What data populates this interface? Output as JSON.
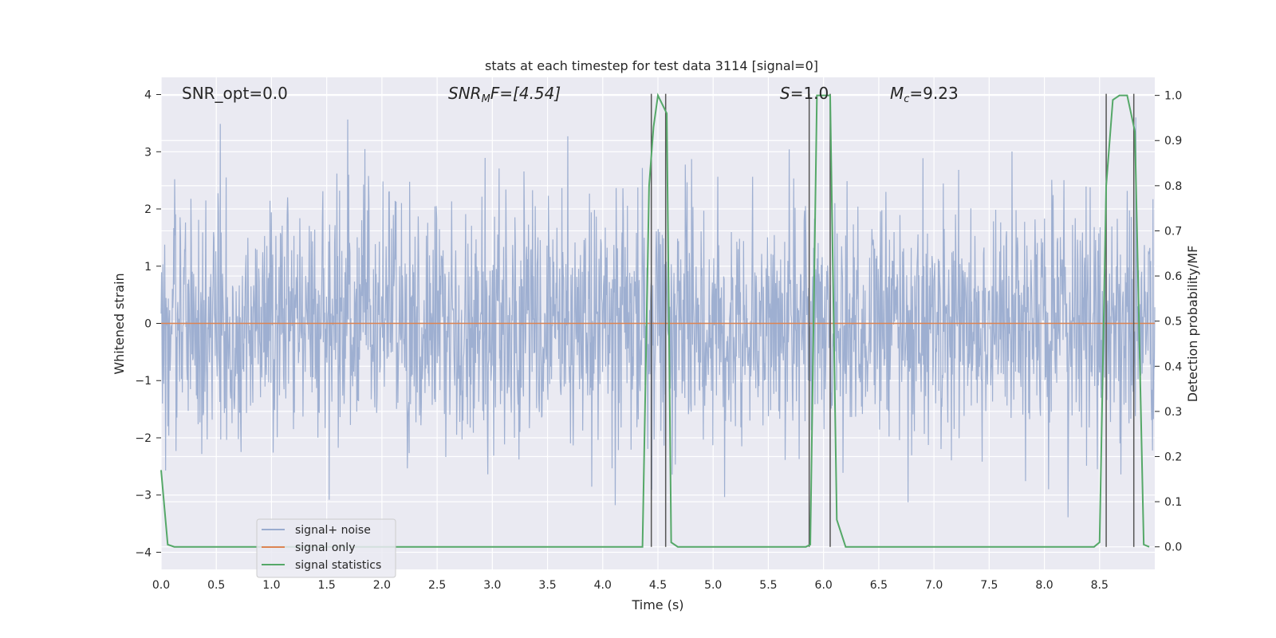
{
  "chart_data": {
    "type": "line",
    "title": "stats at each timestep for test data 3114 [signal=0]",
    "xlabel": "Time (s)",
    "ylabel": "Whitened strain",
    "ylabel_right": "Detection probability/MF",
    "xlim": [
      0,
      9.0
    ],
    "ylim": [
      -4.3,
      4.3
    ],
    "ylim_right": [
      -0.05,
      1.04
    ],
    "x_ticks": [
      "0.0",
      "0.5",
      "1.0",
      "1.5",
      "2.0",
      "2.5",
      "3.0",
      "3.5",
      "4.0",
      "4.5",
      "5.0",
      "5.5",
      "6.0",
      "6.5",
      "7.0",
      "7.5",
      "8.0",
      "8.5"
    ],
    "y_ticks": [
      "4",
      "3",
      "2",
      "1",
      "0",
      "−1",
      "−2",
      "−3",
      "−4"
    ],
    "y_right_ticks": [
      "1.0",
      "0.9",
      "0.8",
      "0.7",
      "0.6",
      "0.5",
      "0.4",
      "0.3",
      "0.2",
      "0.1",
      "0.0"
    ],
    "grid": true,
    "legend_placement": "lower-left",
    "annotations": {
      "snr_opt": "SNR_opt=0.0",
      "snr_mf_label": "SNR",
      "snr_mf_sub": "M",
      "snr_mf_rest": "F=[4.54]",
      "s_label": "S",
      "s_rest": "=1.0",
      "mc_label": "M",
      "mc_sub": "c",
      "mc_rest": "=9.23"
    },
    "series": [
      {
        "name": "signal+ noise",
        "color": "#9aaccf",
        "description_values": "whitened strain noise, approx range -3.7 to 3.6"
      },
      {
        "name": "signal only",
        "color": "#dd8452",
        "y_constant": 0
      },
      {
        "name": "signal statistics",
        "color": "#55a868",
        "x": [
          0.0,
          0.06,
          0.12,
          0.5,
          1.0,
          1.5,
          2.0,
          2.5,
          3.0,
          3.5,
          4.0,
          4.36,
          4.42,
          4.46,
          4.5,
          4.58,
          4.62,
          4.68,
          5.0,
          5.5,
          5.84,
          5.88,
          5.94,
          6.06,
          6.12,
          6.2,
          6.5,
          7.0,
          7.5,
          8.0,
          8.45,
          8.5,
          8.56,
          8.62,
          8.68,
          8.75,
          8.82,
          8.9,
          8.95
        ],
        "values": [
          0.17,
          0.005,
          0.0,
          0.0,
          0.0,
          0.0,
          0.0,
          0.0,
          0.0,
          0.0,
          0.0,
          0.0,
          0.8,
          0.93,
          1.0,
          0.96,
          0.01,
          0.0,
          0.0,
          0.0,
          0.0,
          0.005,
          1.0,
          1.0,
          0.06,
          0.0,
          0.0,
          0.0,
          0.0,
          0.0,
          0.0,
          0.01,
          0.8,
          0.99,
          1.0,
          1.0,
          0.92,
          0.005,
          0.0
        ]
      }
    ],
    "vertical_markers": [
      4.44,
      4.57,
      5.87,
      6.06,
      8.56,
      8.81
    ]
  }
}
